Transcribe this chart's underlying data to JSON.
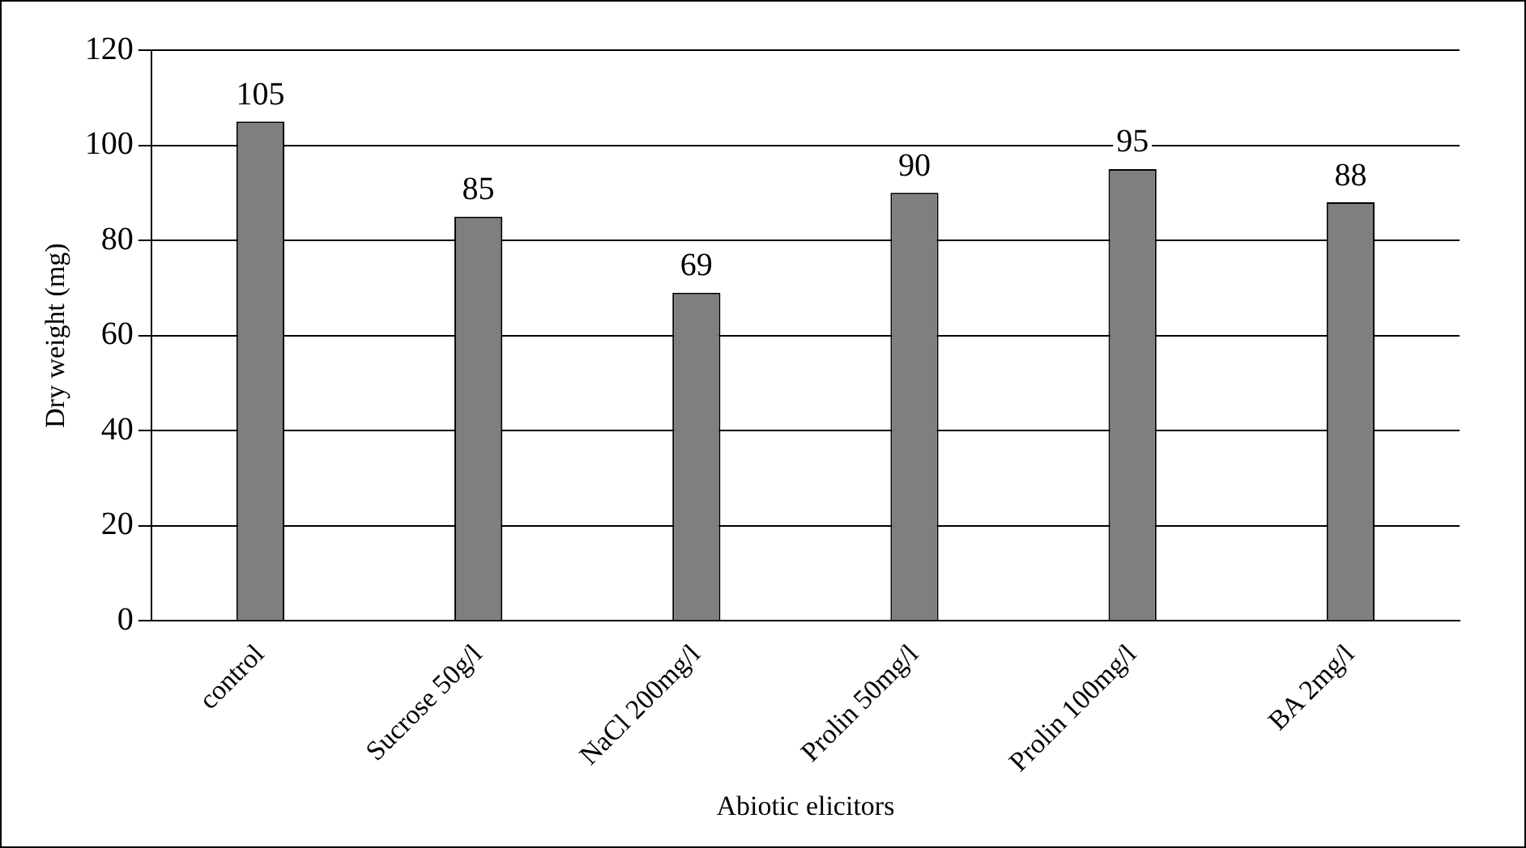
{
  "chart_data": {
    "type": "bar",
    "xlabel": "Abiotic elicitors",
    "ylabel": "Dry weight (mg)",
    "categories": [
      "control",
      "Sucrose 50g/l",
      "NaCl 200mg/l",
      "Prolin 50mg/l",
      "Prolin 100mg/l",
      "BA 2mg/l"
    ],
    "values": [
      105,
      85,
      69,
      90,
      95,
      88
    ],
    "color": "#7f7f7f",
    "ylim": [
      0,
      120
    ],
    "yticks": [
      0,
      20,
      40,
      60,
      80,
      100,
      120
    ],
    "grid": "y",
    "data_labels": true
  }
}
